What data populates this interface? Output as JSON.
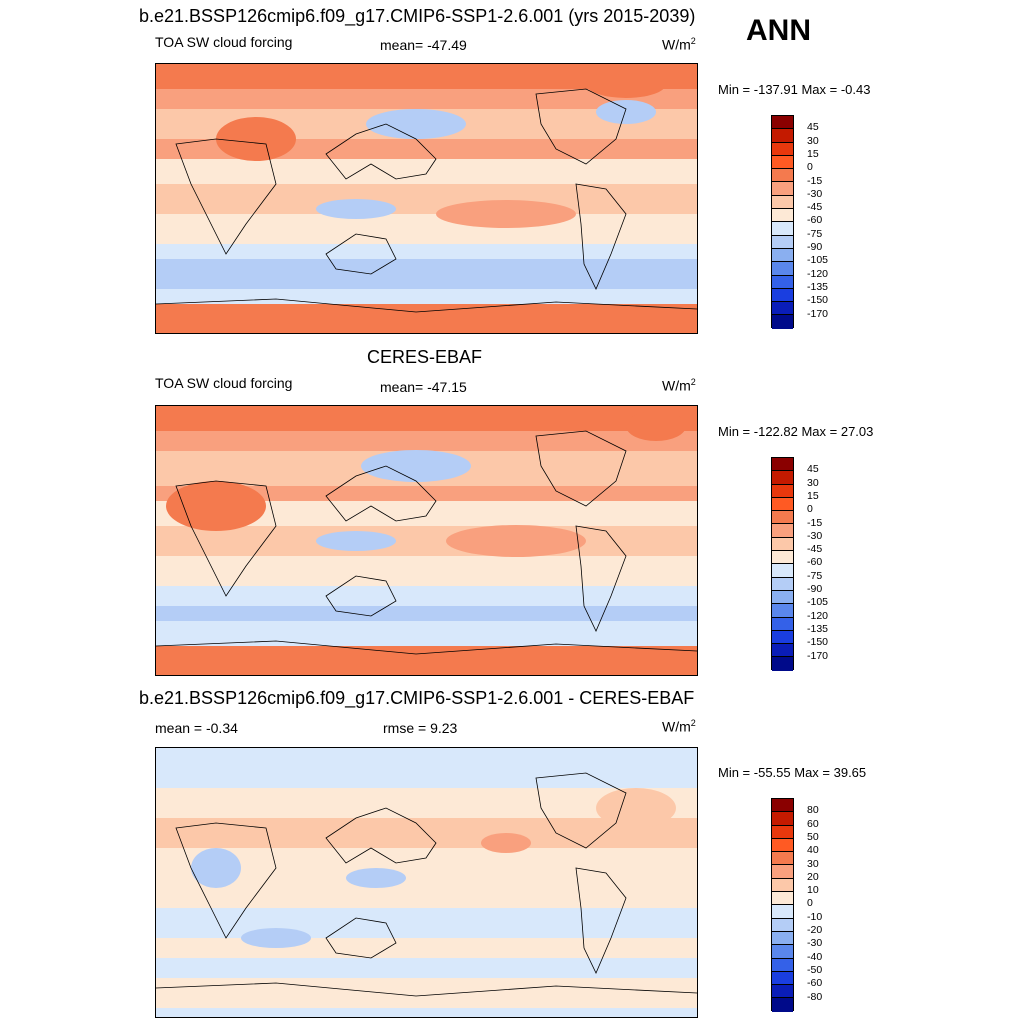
{
  "season": "ANN",
  "panels": [
    {
      "title": "b.e21.BSSP126cmip6.f09_g17.CMIP6-SSP1-2.6.001 (yrs 2015-2039)",
      "left_label": "TOA SW cloud forcing",
      "center_label": "mean= -47.49",
      "units": "W/m",
      "units_sup": "2",
      "minmax": "Min = -137.91 Max =  -0.43"
    },
    {
      "title": "CERES-EBAF",
      "left_label": "TOA SW cloud forcing",
      "center_label": "mean= -47.15",
      "units": "W/m",
      "units_sup": "2",
      "minmax": "Min = -122.82 Max =  27.03"
    },
    {
      "title": "b.e21.BSSP126cmip6.f09_g17.CMIP6-SSP1-2.6.001 - CERES-EBAF",
      "left_label": "mean =  -0.34",
      "center_label": "rmse =   9.23",
      "units": "W/m",
      "units_sup": "2",
      "minmax": "Min = -55.55 Max =  39.65"
    }
  ],
  "chart_data": [
    {
      "type": "heatmap",
      "field": "TOA SW cloud forcing",
      "mean": -47.49,
      "min": -137.91,
      "max": -0.43,
      "colorbar_levels": [
        "45",
        "30",
        "15",
        "0",
        "-15",
        "-30",
        "-45",
        "-60",
        "-75",
        "-90",
        "-105",
        "-120",
        "-135",
        "-150",
        "-170"
      ],
      "colors": [
        "#8a0000",
        "#c41a00",
        "#e8380d",
        "#ff5a23",
        "#f47a4e",
        "#f9a07e",
        "#fcc8a9",
        "#fde9d6",
        "#d8e8fb",
        "#b4cdf6",
        "#8aaff0",
        "#5a87ec",
        "#3461e8",
        "#1a3ee0",
        "#0a1db8",
        "#000a8a"
      ]
    },
    {
      "type": "heatmap",
      "field": "TOA SW cloud forcing",
      "mean": -47.15,
      "min": -122.82,
      "max": 27.03,
      "colorbar_levels": [
        "45",
        "30",
        "15",
        "0",
        "-15",
        "-30",
        "-45",
        "-60",
        "-75",
        "-90",
        "-105",
        "-120",
        "-135",
        "-150",
        "-170"
      ],
      "colors": [
        "#8a0000",
        "#c41a00",
        "#e8380d",
        "#ff5a23",
        "#f47a4e",
        "#f9a07e",
        "#fcc8a9",
        "#fde9d6",
        "#d8e8fb",
        "#b4cdf6",
        "#8aaff0",
        "#5a87ec",
        "#3461e8",
        "#1a3ee0",
        "#0a1db8",
        "#000a8a"
      ]
    },
    {
      "type": "heatmap",
      "field": "difference",
      "mean": -0.34,
      "rmse": 9.23,
      "min": -55.55,
      "max": 39.65,
      "colorbar_levels": [
        "80",
        "60",
        "50",
        "40",
        "30",
        "20",
        "10",
        "0",
        "-10",
        "-20",
        "-30",
        "-40",
        "-50",
        "-60",
        "-80"
      ],
      "colors": [
        "#8a0000",
        "#c41a00",
        "#e8380d",
        "#ff5a23",
        "#f47a4e",
        "#f9a07e",
        "#fcc8a9",
        "#fde9d6",
        "#d8e8fb",
        "#b4cdf6",
        "#8aaff0",
        "#5a87ec",
        "#3461e8",
        "#1a3ee0",
        "#0a1db8",
        "#000a8a"
      ]
    }
  ]
}
